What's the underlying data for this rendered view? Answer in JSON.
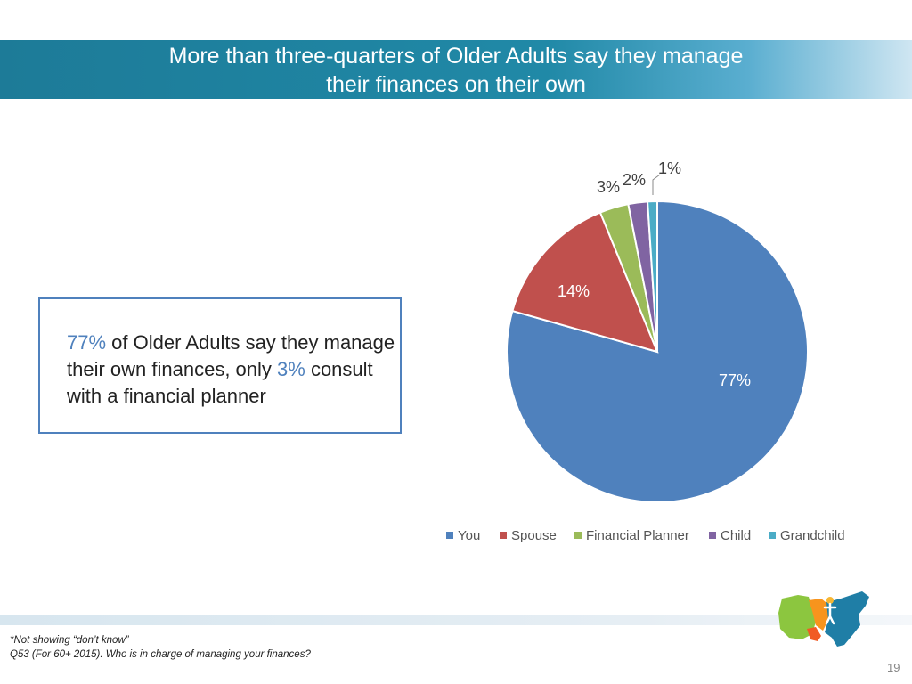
{
  "title": {
    "line1": "More than three-quarters of Older Adults say they manage",
    "line2": "their finances on their own"
  },
  "callout": {
    "pct1": "77%",
    "text1": " of Older Adults say they manage their own finances, only ",
    "pct2": "3%",
    "text2": " consult with a financial planner"
  },
  "chart_data": {
    "type": "pie",
    "title": "",
    "categories": [
      "You",
      "Spouse",
      "Financial Planner",
      "Child",
      "Grandchild"
    ],
    "values": [
      77,
      14,
      3,
      2,
      1
    ],
    "labels": [
      "77%",
      "14%",
      "3%",
      "2%",
      "1%"
    ],
    "colors": [
      "#4f81bd",
      "#c0504d",
      "#9bbb59",
      "#8064a2",
      "#4bacc6"
    ],
    "legend_position": "bottom"
  },
  "footnote": {
    "line1": "*Not showing “don’t know”",
    "line2": "Q53 (For 60+ 2015). Who is in charge of managing your finances?"
  },
  "page_number": "19",
  "logo": {
    "icon": "us-map-logo"
  }
}
